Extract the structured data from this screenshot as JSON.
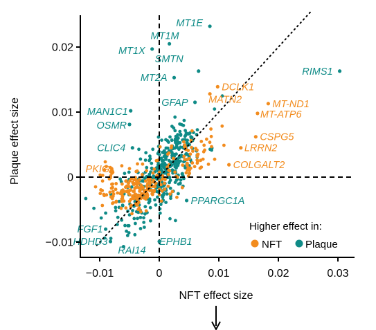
{
  "chart_data": {
    "type": "scatter",
    "xlabel": "NFT effect size",
    "ylabel": "Plaque effect size",
    "xlim": [
      -0.0125,
      0.0315
    ],
    "ylim": [
      -0.0125,
      0.0255
    ],
    "x_ticks": [
      {
        "value": -0.01,
        "label": "−0.01"
      },
      {
        "value": 0,
        "label": "0"
      },
      {
        "value": 0.01,
        "label": "0.01"
      },
      {
        "value": 0.02,
        "label": "0.02"
      },
      {
        "value": 0.03,
        "label": "0.03"
      }
    ],
    "y_ticks": [
      {
        "value": -0.01,
        "label": "−0.01"
      },
      {
        "value": 0,
        "label": "0"
      },
      {
        "value": 0.01,
        "label": "0.01"
      },
      {
        "value": 0.02,
        "label": "0.02"
      }
    ],
    "reference_lines": [
      "x = 0 (dashed)",
      "y = 0 (dashed)",
      "y = x (dotted)"
    ],
    "colors": {
      "NFT": "#f28c1e",
      "Plaque": "#0f8b87"
    },
    "legend": {
      "title": "Higher effect in:",
      "entries": [
        {
          "name": "NFT",
          "color": "#f28c1e"
        },
        {
          "name": "Plaque",
          "color": "#0f8b87"
        }
      ],
      "placement": "bottom-right"
    },
    "annotated_genes": [
      {
        "name": "MT1E",
        "x": 0.0085,
        "y": 0.0232,
        "group": "Plaque"
      },
      {
        "name": "MT1M",
        "x": 0.0017,
        "y": 0.0205,
        "group": "Plaque"
      },
      {
        "name": "MT1X",
        "x": -0.0012,
        "y": 0.0197,
        "group": "Plaque"
      },
      {
        "name": "SMTN",
        "x": 0.0066,
        "y": 0.0163,
        "group": "Plaque"
      },
      {
        "name": "MT2A",
        "x": 0.0025,
        "y": 0.0153,
        "group": "Plaque"
      },
      {
        "name": "RIMS1",
        "x": 0.0303,
        "y": 0.0163,
        "group": "Plaque"
      },
      {
        "name": "DCLK1",
        "x": 0.0098,
        "y": 0.0139,
        "group": "NFT"
      },
      {
        "name": "MATN2",
        "x": 0.0085,
        "y": 0.0128,
        "group": "NFT"
      },
      {
        "name": "MT-ND1",
        "x": 0.0183,
        "y": 0.0113,
        "group": "NFT"
      },
      {
        "name": "MT-ATP6",
        "x": 0.0165,
        "y": 0.0098,
        "group": "NFT"
      },
      {
        "name": "GFAP",
        "x": 0.006,
        "y": 0.0115,
        "group": "Plaque"
      },
      {
        "name": "MAN1C1",
        "x": -0.0048,
        "y": 0.0102,
        "group": "Plaque"
      },
      {
        "name": "OSMR",
        "x": -0.005,
        "y": 0.0081,
        "group": "Plaque"
      },
      {
        "name": "CSPG5",
        "x": 0.0162,
        "y": 0.0062,
        "group": "NFT"
      },
      {
        "name": "LRRN2",
        "x": 0.0137,
        "y": 0.0045,
        "group": "NFT"
      },
      {
        "name": "CLIC4",
        "x": -0.0045,
        "y": 0.0045,
        "group": "Plaque"
      },
      {
        "name": "COLGALT2",
        "x": 0.0117,
        "y": 0.0019,
        "group": "NFT"
      },
      {
        "name": "PKIG",
        "x": -0.008,
        "y": 0.0013,
        "group": "NFT"
      },
      {
        "name": "PPARGC1A",
        "x": 0.0046,
        "y": -0.0036,
        "group": "Plaque"
      },
      {
        "name": "FGF1",
        "x": -0.009,
        "y": -0.008,
        "group": "Plaque"
      },
      {
        "name": "HDHD3",
        "x": -0.0082,
        "y": -0.0099,
        "group": "Plaque"
      },
      {
        "name": "EPHB1",
        "x": 0.0,
        "y": -0.0099,
        "group": "Plaque"
      },
      {
        "name": "RAI14",
        "x": -0.006,
        "y": -0.0107,
        "group": "Plaque"
      }
    ],
    "clusters": [
      {
        "group": "Plaque",
        "n": 260,
        "cx": 0.0022,
        "cy": 0.003,
        "sx": 0.0022,
        "sy": 0.0026,
        "rho": 0.5
      },
      {
        "group": "Plaque",
        "n": 130,
        "cx": -0.003,
        "cy": -0.0038,
        "sx": 0.0028,
        "sy": 0.0026,
        "rho": 0.3
      },
      {
        "group": "NFT",
        "n": 170,
        "cx": -0.0035,
        "cy": -0.0022,
        "sx": 0.0024,
        "sy": 0.0016,
        "rho": 0.3
      },
      {
        "group": "NFT",
        "n": 70,
        "cx": 0.0045,
        "cy": 0.0032,
        "sx": 0.0025,
        "sy": 0.002,
        "rho": 0.4
      },
      {
        "group": "NFT",
        "n": 25,
        "cx": -0.0085,
        "cy": -0.0005,
        "sx": 0.0012,
        "sy": 0.0016,
        "rho": 0.0
      }
    ]
  }
}
